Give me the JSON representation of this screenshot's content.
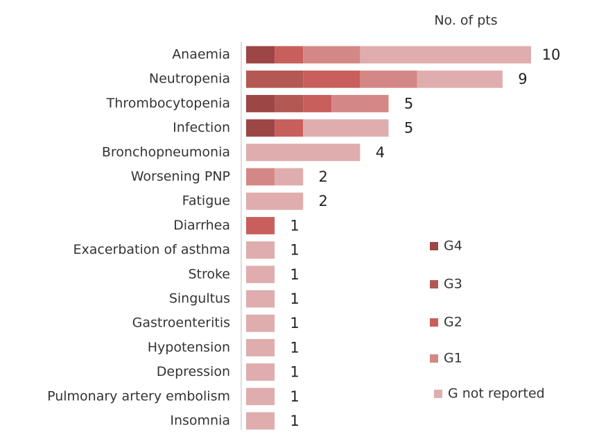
{
  "chart_data": {
    "type": "bar",
    "orientation": "horizontal",
    "stacked": true,
    "title": "No. of pts",
    "categories": [
      "Anaemia",
      "Neutropenia",
      "Thrombocytopenia",
      "Infection",
      "Bronchopneumonia",
      "Worsening PNP",
      "Fatigue",
      "Diarrhea",
      "Exacerbation of asthma",
      "Stroke",
      "Singultus",
      "Gastroenteritis",
      "Hypotension",
      "Depression",
      "Pulmonary artery embolism",
      "Insomnia"
    ],
    "series": [
      {
        "name": "G4",
        "color": "#9c4646",
        "values": [
          1,
          0,
          1,
          1,
          0,
          0,
          0,
          0,
          0,
          0,
          0,
          0,
          0,
          0,
          0,
          0
        ]
      },
      {
        "name": "G3",
        "color": "#b35853",
        "values": [
          0,
          2,
          1,
          0,
          0,
          0,
          0,
          0,
          0,
          0,
          0,
          0,
          0,
          0,
          0,
          0
        ]
      },
      {
        "name": "G2",
        "color": "#c85f5c",
        "values": [
          1,
          2,
          1,
          1,
          0,
          0,
          0,
          1,
          0,
          0,
          0,
          0,
          0,
          0,
          0,
          0
        ]
      },
      {
        "name": "G1",
        "color": "#d48886",
        "values": [
          2,
          2,
          2,
          0,
          0,
          1,
          0,
          0,
          0,
          0,
          0,
          0,
          0,
          0,
          0,
          0
        ]
      },
      {
        "name": "G not reported",
        "color": "#dfadad",
        "values": [
          6,
          3,
          0,
          3,
          4,
          1,
          2,
          0,
          1,
          1,
          1,
          1,
          1,
          1,
          1,
          1
        ]
      }
    ],
    "totals": [
      10,
      9,
      5,
      5,
      4,
      2,
      2,
      1,
      1,
      1,
      1,
      1,
      1,
      1,
      1,
      1
    ]
  }
}
